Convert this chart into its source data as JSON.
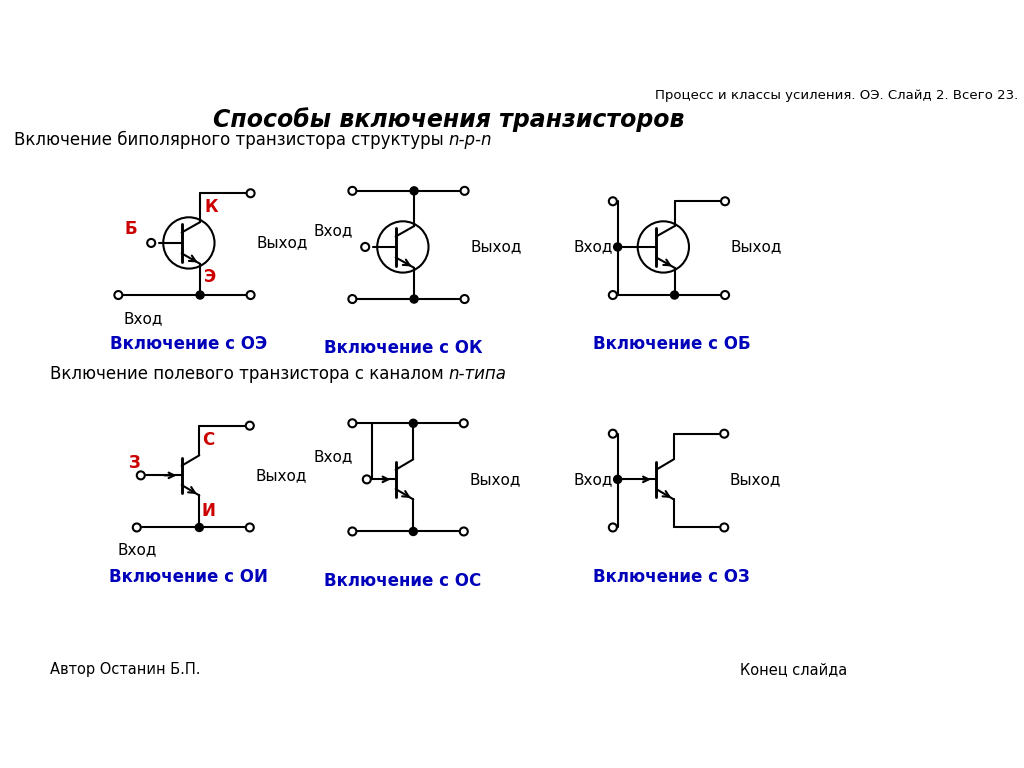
{
  "title": "Способы включения транзисторов",
  "subtitle": "Процесс и классы усиления. ОЭ. Слайд 2. Всего 23.",
  "bipolar_header": "Включение биполярного транзистора структуры ",
  "bipolar_header_italic": "n-p-n",
  "fet_header": "Включение полевого транзистора с каналом ",
  "fet_header_italic": "n-типа",
  "labels_bipolar": [
    "Включение с ОЭ",
    "Включение с ОК",
    "Включение с ОБ"
  ],
  "labels_fet": [
    "Включение с ОИ",
    "Включение с ОС",
    "Включение с ОЗ"
  ],
  "author": "Автор Останин Б.П.",
  "end": "Конец слайда",
  "bg_color": "#ffffff",
  "blue_color": "#0000bb",
  "red_color": "#cc0000",
  "line_color": "#000000",
  "lw": 1.5
}
